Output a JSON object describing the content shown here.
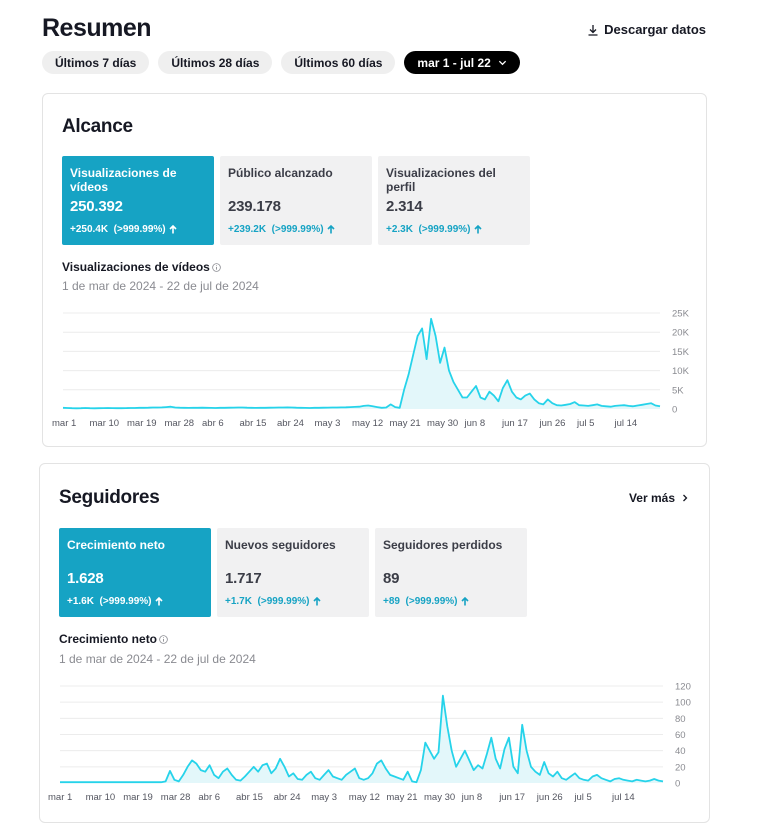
{
  "header": {
    "title": "Resumen",
    "download_label": "Descargar datos"
  },
  "filters": [
    {
      "label": "Últimos 7 días"
    },
    {
      "label": "Últimos 28 días"
    },
    {
      "label": "Últimos 60 días"
    },
    {
      "label": "mar 1 - jul 22"
    }
  ],
  "colors": {
    "accent": "#16a3c4",
    "line": "#26d3ea",
    "area": "#e3f7fa"
  },
  "reach": {
    "title": "Alcance",
    "metrics": [
      {
        "label": "Visualizaciones de vídeos",
        "value": "250.392",
        "delta": "+250.4K  (>999.99%)"
      },
      {
        "label": "Público alcanzado",
        "value": "239.178",
        "delta": "+239.2K  (>999.99%)"
      },
      {
        "label": "Visualizaciones del perfil",
        "value": "2.314",
        "delta": "+2.3K  (>999.99%)"
      }
    ],
    "chart_title": "Visualizaciones de vídeos",
    "chart_range": "1 de mar de 2024 - 22 de jul de 2024"
  },
  "followers": {
    "title": "Seguidores",
    "more_label": "Ver más",
    "metrics": [
      {
        "label": "Crecimiento neto",
        "value": "1.628",
        "delta": "+1.6K  (>999.99%)"
      },
      {
        "label": "Nuevos seguidores",
        "value": "1.717",
        "delta": "+1.7K  (>999.99%)"
      },
      {
        "label": "Seguidores perdidos",
        "value": "89",
        "delta": "+89  (>999.99%)"
      }
    ],
    "chart_title": "Crecimiento neto",
    "chart_range": "1 de mar de 2024 - 22 de jul de 2024"
  },
  "chart_data": [
    {
      "type": "area",
      "x_tick_labels": [
        "mar 1",
        "mar 10",
        "mar 19",
        "mar 28",
        "abr 6",
        "abr 15",
        "abr 24",
        "may 3",
        "may 12",
        "may 21",
        "may 30",
        "jun 8",
        "jun 17",
        "jun 26",
        "jul 5",
        "jul 14"
      ],
      "y_tick_labels": [
        "0",
        "5K",
        "10K",
        "15K",
        "20K",
        "25K"
      ],
      "ylim": [
        0,
        25000
      ],
      "grid": true,
      "series": [
        {
          "values": [
            300,
            250,
            200,
            180,
            220,
            250,
            200,
            180,
            210,
            230,
            260,
            240,
            220,
            200,
            230,
            250,
            270,
            300,
            320,
            350,
            380,
            400,
            420,
            500,
            600,
            400,
            350,
            300,
            280,
            300,
            320,
            350,
            300,
            280,
            260,
            300,
            320,
            340,
            360,
            400,
            380,
            350,
            300,
            280,
            300,
            320,
            340,
            360,
            380,
            400,
            420,
            380,
            350,
            300,
            280,
            260,
            300,
            320,
            340,
            360,
            380,
            400,
            420,
            450,
            500,
            550,
            600,
            800,
            900,
            700,
            500,
            300,
            400,
            1200,
            500,
            300,
            5000,
            9000,
            14000,
            19000,
            21000,
            13000,
            23500,
            19000,
            12000,
            16000,
            10000,
            7000,
            5000,
            3000,
            3000,
            4500,
            6000,
            3000,
            2500,
            4500,
            3500,
            2000,
            5500,
            7500,
            4500,
            3000,
            2500,
            3500,
            4000,
            2500,
            1500,
            1200,
            2500,
            1500,
            1000,
            900,
            1100,
            1300,
            1800,
            1000,
            900,
            800,
            1000,
            1200,
            800,
            700,
            600,
            800,
            900,
            1000,
            800,
            700,
            900,
            1100,
            1300,
            1500,
            900,
            700
          ]
        }
      ]
    },
    {
      "type": "area",
      "x_tick_labels": [
        "mar 1",
        "mar 10",
        "mar 19",
        "mar 28",
        "abr 6",
        "abr 15",
        "abr 24",
        "may 3",
        "may 12",
        "may 21",
        "may 30",
        "jun 8",
        "jun 17",
        "jun 26",
        "jul 5",
        "jul 14"
      ],
      "y_tick_labels": [
        "0",
        "20",
        "40",
        "60",
        "80",
        "100",
        "120"
      ],
      "ylim": [
        0,
        120
      ],
      "grid": true,
      "series": [
        {
          "values": [
            1,
            1,
            1,
            1,
            1,
            1,
            1,
            1,
            1,
            1,
            1,
            1,
            1,
            1,
            1,
            1,
            1,
            1,
            1,
            1,
            1,
            1,
            1,
            1,
            2,
            15,
            4,
            2,
            10,
            20,
            28,
            24,
            16,
            14,
            22,
            10,
            6,
            14,
            18,
            10,
            4,
            3,
            8,
            14,
            20,
            14,
            22,
            24,
            12,
            18,
            30,
            20,
            8,
            12,
            5,
            4,
            10,
            14,
            6,
            4,
            10,
            16,
            8,
            6,
            4,
            10,
            14,
            18,
            6,
            4,
            6,
            12,
            24,
            28,
            18,
            10,
            8,
            6,
            4,
            14,
            2,
            1,
            16,
            50,
            40,
            30,
            38,
            108,
            70,
            40,
            20,
            30,
            40,
            28,
            16,
            22,
            18,
            36,
            56,
            30,
            18,
            42,
            56,
            20,
            12,
            72,
            40,
            20,
            14,
            10,
            26,
            12,
            8,
            14,
            6,
            4,
            8,
            12,
            6,
            4,
            3,
            8,
            10,
            6,
            4,
            2,
            5,
            6,
            4,
            3,
            2,
            4,
            3,
            2,
            3,
            5,
            3,
            2
          ]
        }
      ]
    }
  ]
}
